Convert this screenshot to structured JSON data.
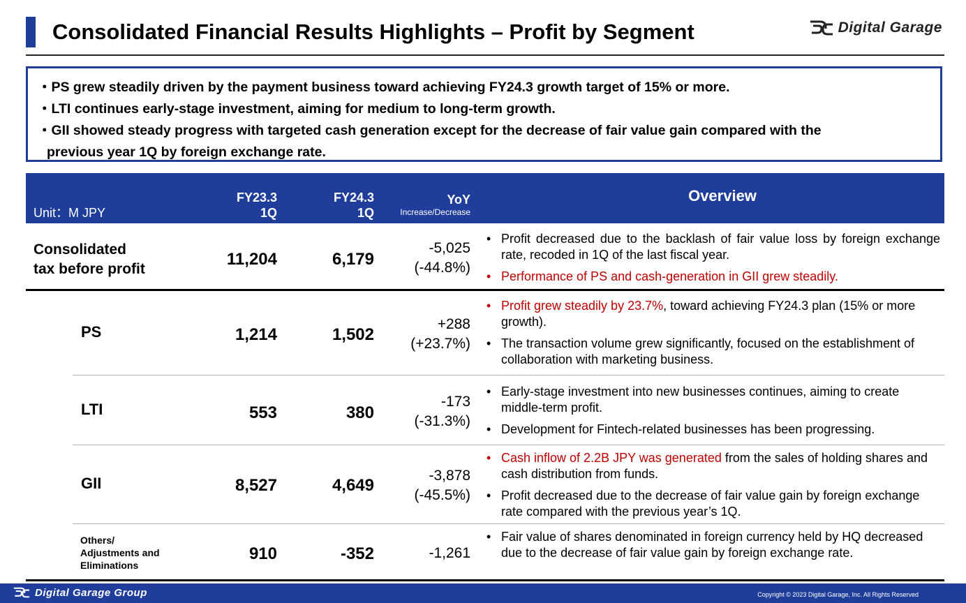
{
  "header": {
    "title": "Consolidated Financial Results Highlights – Profit by Segment",
    "logo_text": "Digital Garage"
  },
  "summary": {
    "lines": [
      "・PS grew steadily driven by the payment business toward achieving FY24.3 growth target of 15% or more.",
      "・LTI continues early-stage investment, aiming for medium to long-term growth.",
      "・GII showed steady progress with targeted cash generation except for the decrease of fair value gain compared with the",
      "previous year 1Q by foreign exchange rate."
    ]
  },
  "table": {
    "unit": "Unit：M JPY",
    "col_fy23_line1": "FY23.3",
    "col_fy23_line2": "1Q",
    "col_fy24_line1": "FY24.3",
    "col_fy24_line2": "1Q",
    "col_yoy": "YoY",
    "col_yoy_sub": "Increase/Decrease",
    "col_overview": "Overview",
    "rows": [
      {
        "label_line1": "Consolidated",
        "label_line2": "tax before profit",
        "fy23": "11,204",
        "fy24": "6,179",
        "yoy_abs": "-5,025",
        "yoy_pct": "(-44.8%)",
        "overview": [
          {
            "red": "",
            "text": "Profit decreased due to the backlash of fair value loss by foreign exchange rate, recoded in 1Q of the last fiscal year."
          },
          {
            "red": "Performance of PS and cash-generation in GII grew steadily.",
            "text": ""
          }
        ]
      },
      {
        "label_line1": "PS",
        "fy23": "1,214",
        "fy24": "1,502",
        "yoy_abs": "+288",
        "yoy_pct": "(+23.7%)",
        "overview": [
          {
            "red": "Profit grew steadily by 23.7%",
            "text": ", toward achieving FY24.3 plan (15% or more growth)."
          },
          {
            "red": "",
            "text": "The transaction volume grew significantly, focused on the establishment of collaboration with marketing business."
          }
        ]
      },
      {
        "label_line1": "LTI",
        "fy23": "553",
        "fy24": "380",
        "yoy_abs": "-173",
        "yoy_pct": "(-31.3%)",
        "overview": [
          {
            "red": "",
            "text": "Early-stage investment into new businesses continues, aiming to create middle-term profit."
          },
          {
            "red": "",
            "text": "Development for Fintech-related businesses has been progressing."
          }
        ]
      },
      {
        "label_line1": "GII",
        "fy23": "8,527",
        "fy24": "4,649",
        "yoy_abs": "-3,878",
        "yoy_pct": "(-45.5%)",
        "overview": [
          {
            "red": "Cash inflow of 2.2B JPY was generated",
            "text": " from the sales of holding shares and cash distribution from funds."
          },
          {
            "red": "",
            "text": "Profit decreased due to the decrease of fair value gain by foreign exchange rate compared with the previous year’s 1Q."
          }
        ]
      },
      {
        "label_line1": "Others/",
        "label_line2": "Adjustments and",
        "label_line3": "Eliminations",
        "fy23": "910",
        "fy24": "-352",
        "yoy_abs": "-1,261",
        "yoy_pct": "",
        "overview": [
          {
            "red": "",
            "text": "Fair value of shares denominated in foreign currency held by HQ decreased due to the decrease of fair value gain by foreign exchange rate."
          }
        ]
      }
    ]
  },
  "footer": {
    "logo_text": "Digital Garage Group",
    "copyright": "Copyright © 2023 Digital Garage, Inc. All Rights Reserved"
  },
  "colors": {
    "brand_blue": "#1f3d9a",
    "highlight_red": "#c00000"
  }
}
